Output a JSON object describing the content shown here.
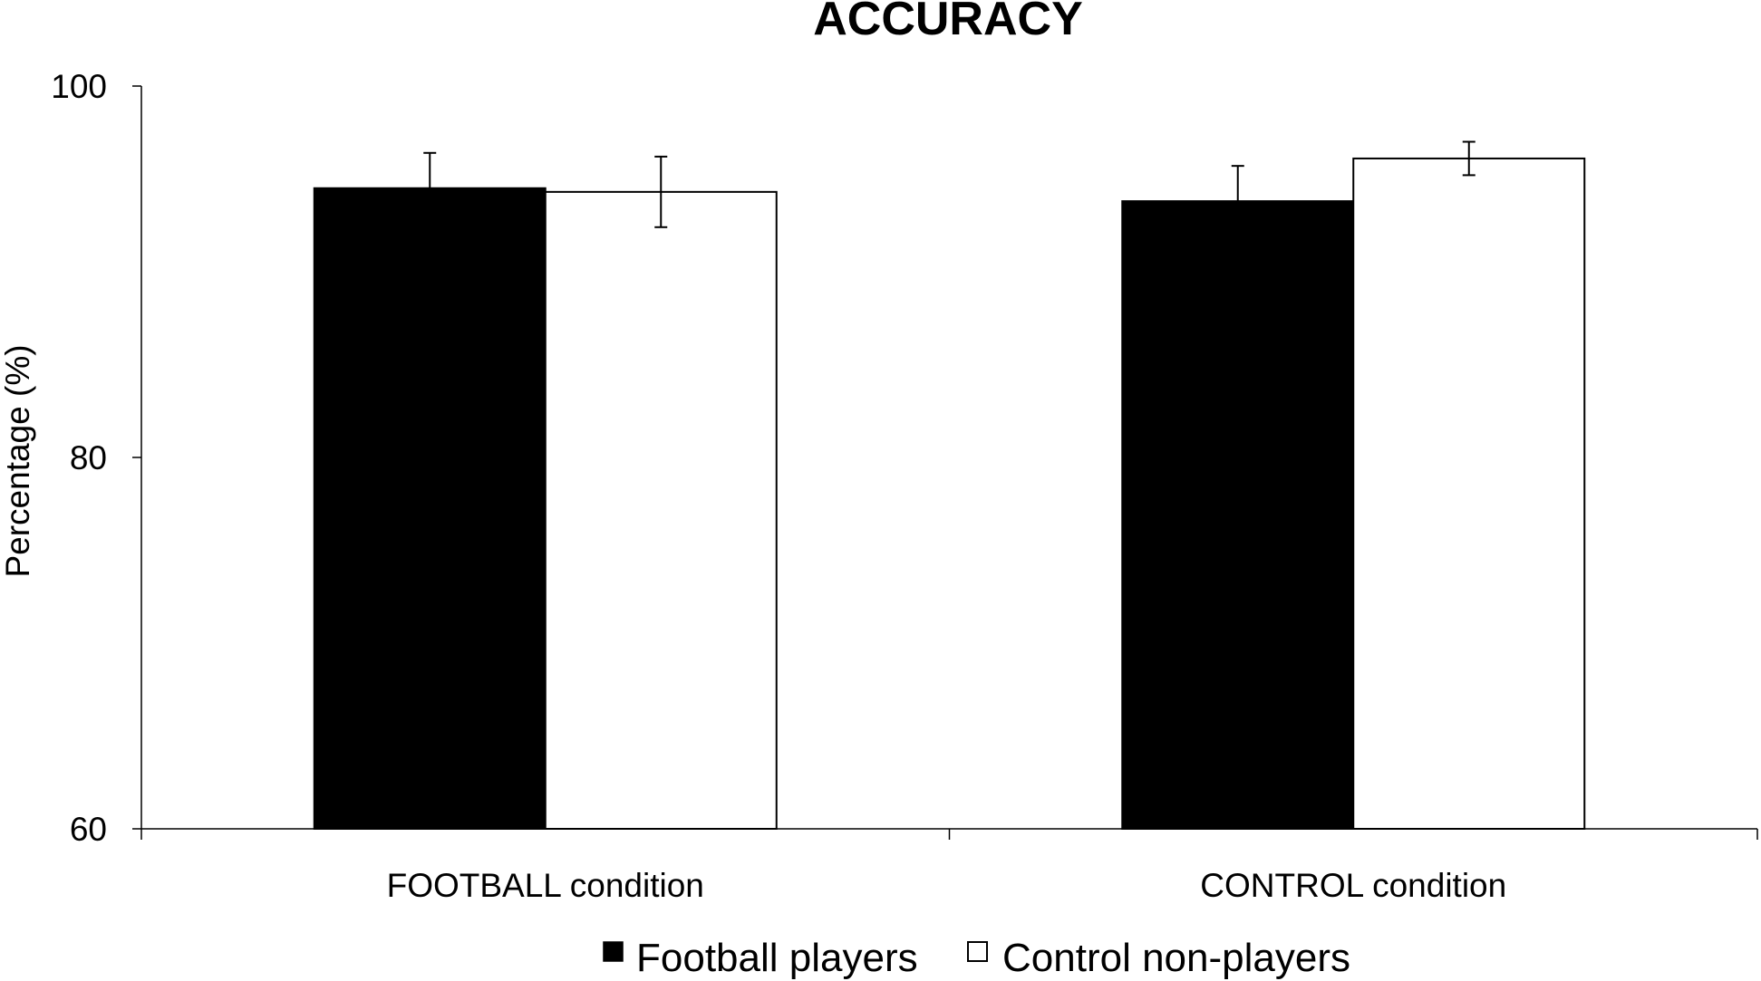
{
  "chart_data": {
    "type": "bar",
    "title": "ACCURACY",
    "xlabel": "",
    "ylabel": "Percentage (%)",
    "ylim": [
      60,
      100
    ],
    "yticks": [
      "60",
      "80",
      "100"
    ],
    "yticks_values": [
      60,
      80,
      100
    ],
    "categories": [
      "FOOTBALL condition",
      "CONTROL condition"
    ],
    "series": [
      {
        "name": "Football players",
        "values": [
          94.5,
          93.8
        ],
        "errors": [
          1.9,
          1.9
        ],
        "color": "#000000"
      },
      {
        "name": "Control non-players",
        "values": [
          94.3,
          96.1
        ],
        "errors": [
          1.9,
          0.9
        ],
        "color": "#ffffff"
      }
    ],
    "grid": false,
    "legend_position": "bottom-center"
  }
}
